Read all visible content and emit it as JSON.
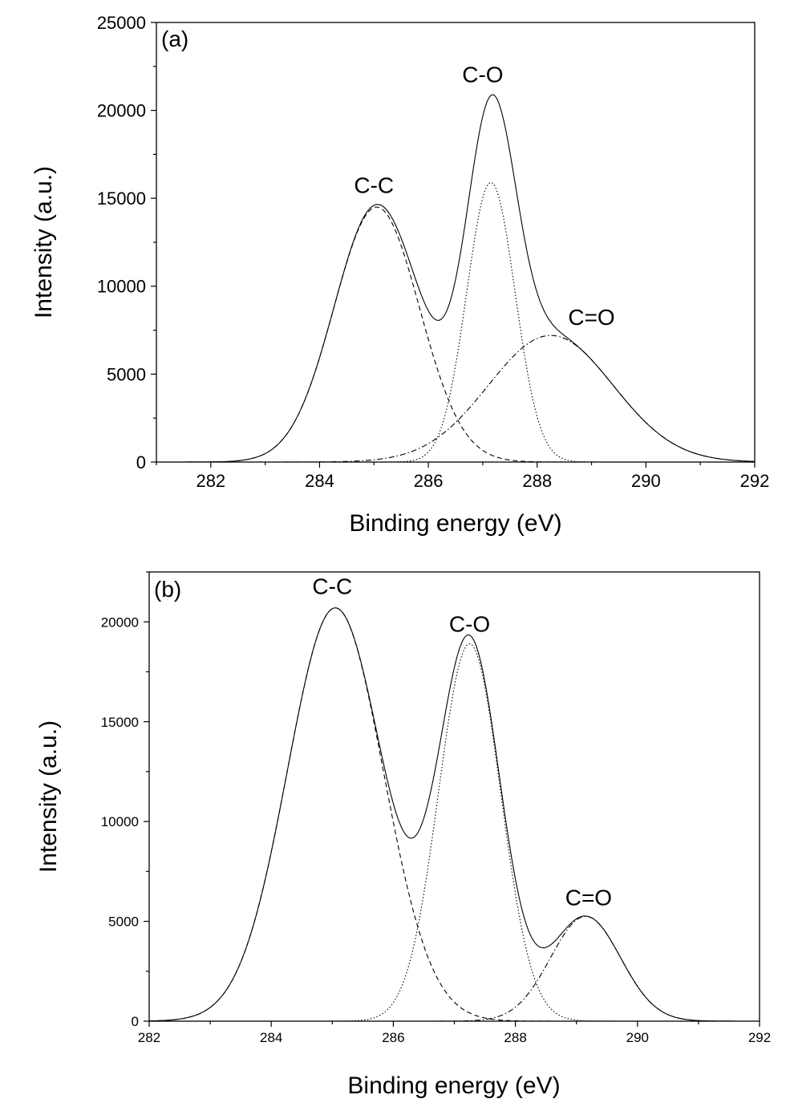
{
  "chart_data": [
    {
      "type": "line",
      "panel_label": "(a)",
      "xlabel": "Binding energy (eV)",
      "ylabel": "Intensity (a.u.)",
      "xlim": [
        281,
        292
      ],
      "ylim": [
        0,
        25000
      ],
      "xticks": [
        282,
        284,
        286,
        288,
        290,
        292
      ],
      "yticks": [
        0,
        5000,
        10000,
        15000,
        20000,
        25000
      ],
      "grid": false,
      "components": [
        {
          "name": "C-C",
          "style": "dashed",
          "center": 285.05,
          "height": 14500,
          "fwhm": 1.85
        },
        {
          "name": "C-O",
          "style": "dotted",
          "center": 287.15,
          "height": 15900,
          "fwhm": 1.05
        },
        {
          "name": "C=O",
          "style": "dash-dot",
          "center": 288.25,
          "height": 7200,
          "fwhm": 2.7
        }
      ],
      "envelope": {
        "style": "solid",
        "description_values": "sum of components",
        "peak_max": 20900
      },
      "annotations": [
        {
          "text": "C-C",
          "x": 285.0,
          "y": 15300
        },
        {
          "text": "C-O",
          "x": 287.0,
          "y": 21600
        },
        {
          "text": "C=O",
          "x": 289.0,
          "y": 7800
        }
      ]
    },
    {
      "type": "line",
      "panel_label": "(b)",
      "xlabel": "Binding energy (eV)",
      "ylabel": "Intensity (a.u.)",
      "xlim": [
        282,
        292
      ],
      "ylim": [
        0,
        22500
      ],
      "xticks": [
        282,
        284,
        286,
        288,
        290,
        292
      ],
      "yticks": [
        0,
        5000,
        10000,
        15000,
        20000
      ],
      "grid": false,
      "components": [
        {
          "name": "C-C",
          "style": "dashed",
          "center": 285.05,
          "height": 20700,
          "fwhm": 1.85
        },
        {
          "name": "C-O",
          "style": "dotted",
          "center": 287.25,
          "height": 18900,
          "fwhm": 1.2
        },
        {
          "name": "C=O",
          "style": "dash-dot",
          "center": 289.15,
          "height": 5250,
          "fwhm": 1.35
        }
      ],
      "envelope": {
        "style": "solid",
        "description_values": "sum of components",
        "peak_max": 20700
      },
      "annotations": [
        {
          "text": "C-C",
          "x": 285.0,
          "y": 21400
        },
        {
          "text": "C-O",
          "x": 287.25,
          "y": 19500
        },
        {
          "text": "C=O",
          "x": 289.2,
          "y": 5800
        }
      ]
    }
  ]
}
